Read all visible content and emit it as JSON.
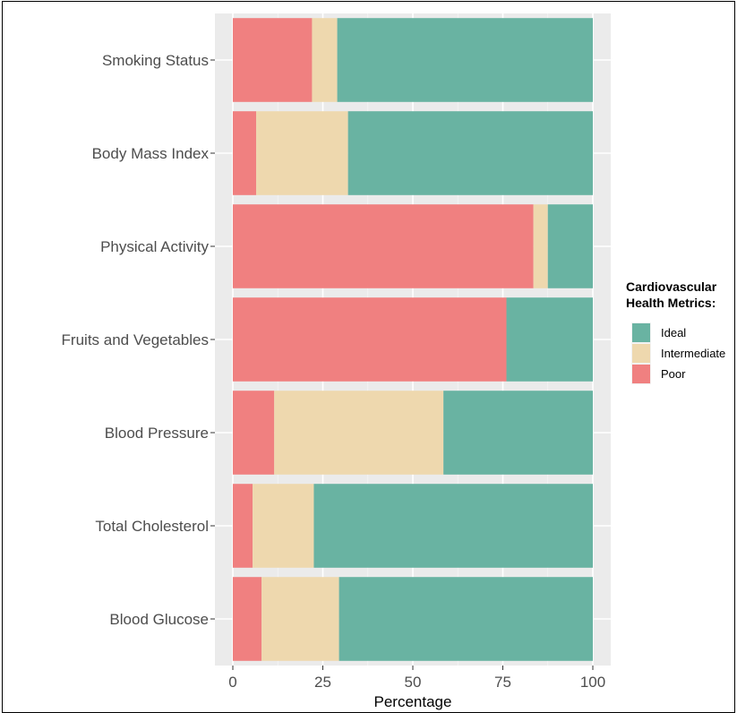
{
  "chart_data": {
    "type": "bar",
    "orientation": "horizontal",
    "stacked": true,
    "categories": [
      "Smoking Status",
      "Body Mass Index",
      "Physical Activity",
      "Fruits and Vegetables",
      "Blood Pressure",
      "Total Cholesterol",
      "Blood Glucose"
    ],
    "series": [
      {
        "name": "Poor",
        "color": "#f08080",
        "values": [
          22,
          6.5,
          83.5,
          76,
          11.5,
          5.5,
          8
        ]
      },
      {
        "name": "Intermediate",
        "color": "#eed8ae",
        "values": [
          7,
          25.5,
          4,
          0,
          47,
          17,
          21.5
        ]
      },
      {
        "name": "Ideal",
        "color": "#69b3a2",
        "values": [
          71,
          68,
          12.5,
          24,
          41.5,
          77.5,
          70.5
        ]
      }
    ],
    "xlim": [
      0,
      100
    ],
    "xticks": [
      "0",
      "25",
      "50",
      "75",
      "100"
    ],
    "xlabel": "Percentage",
    "ylabel": "",
    "grid": true,
    "legend": {
      "title_line1": "Cardiovascular",
      "title_line2": "Health Metrics:",
      "order": [
        "Ideal",
        "Intermediate",
        "Poor"
      ],
      "placement": "right"
    }
  }
}
